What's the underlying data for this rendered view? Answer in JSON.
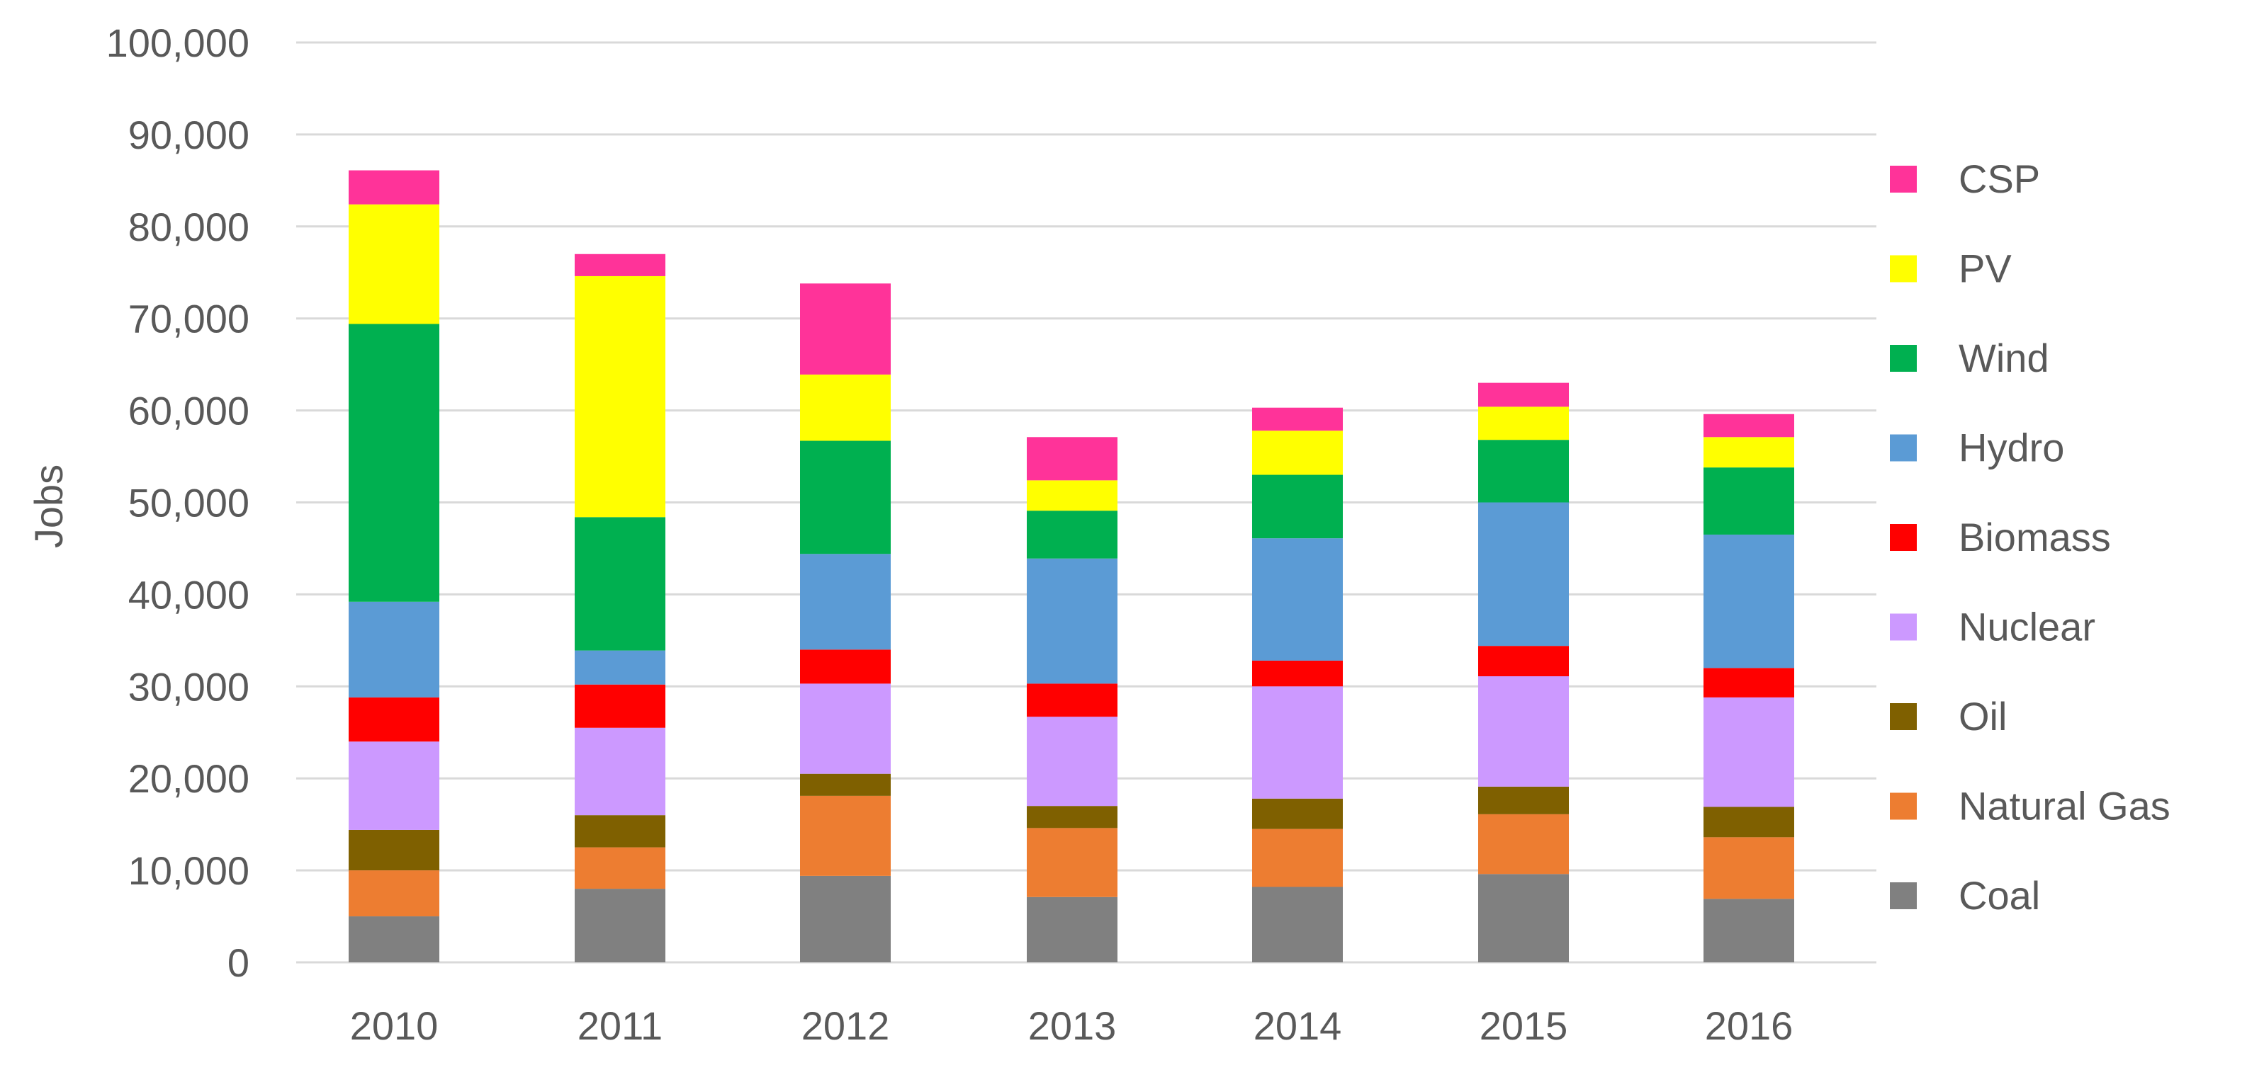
{
  "chart_data": {
    "type": "bar",
    "stacked": true,
    "title": "",
    "xlabel": "",
    "ylabel": "Jobs",
    "ylim": [
      0,
      100000
    ],
    "yticks": [
      0,
      10000,
      20000,
      30000,
      40000,
      50000,
      60000,
      70000,
      80000,
      90000,
      100000
    ],
    "ytick_labels": [
      "0",
      "10,000",
      "20,000",
      "30,000",
      "40,000",
      "50,000",
      "60,000",
      "70,000",
      "80,000",
      "90,000",
      "100,000"
    ],
    "grid": true,
    "legend_position": "right",
    "categories": [
      "2010",
      "2011",
      "2012",
      "2013",
      "2014",
      "2015",
      "2016"
    ],
    "series": [
      {
        "name": "Coal",
        "color": "#808080",
        "values": [
          5000,
          8000,
          9400,
          7100,
          8200,
          9600,
          6900
        ]
      },
      {
        "name": "Natural Gas",
        "color": "#ED7D31",
        "values": [
          5000,
          4500,
          8700,
          7500,
          6300,
          6500,
          6700
        ]
      },
      {
        "name": "Oil",
        "color": "#7F6000",
        "values": [
          4400,
          3500,
          2400,
          2400,
          3300,
          3000,
          3300
        ]
      },
      {
        "name": "Nuclear",
        "color": "#CC99FF",
        "values": [
          9600,
          9500,
          9800,
          9700,
          12200,
          12000,
          11900
        ]
      },
      {
        "name": "Biomass",
        "color": "#FF0000",
        "values": [
          4800,
          4700,
          3700,
          3600,
          2800,
          3300,
          3200
        ]
      },
      {
        "name": "Hydro",
        "color": "#5B9BD5",
        "values": [
          10400,
          3700,
          10400,
          13600,
          13300,
          15600,
          14500
        ]
      },
      {
        "name": "Wind",
        "color": "#00B050",
        "values": [
          30200,
          14500,
          12300,
          5200,
          6900,
          6800,
          7300
        ]
      },
      {
        "name": "PV",
        "color": "#FFFF00",
        "values": [
          13000,
          26200,
          7200,
          3300,
          4800,
          3600,
          3300
        ]
      },
      {
        "name": "CSP",
        "color": "#FF3399",
        "values": [
          3700,
          2400,
          9900,
          4700,
          2500,
          2600,
          2500
        ]
      }
    ]
  }
}
